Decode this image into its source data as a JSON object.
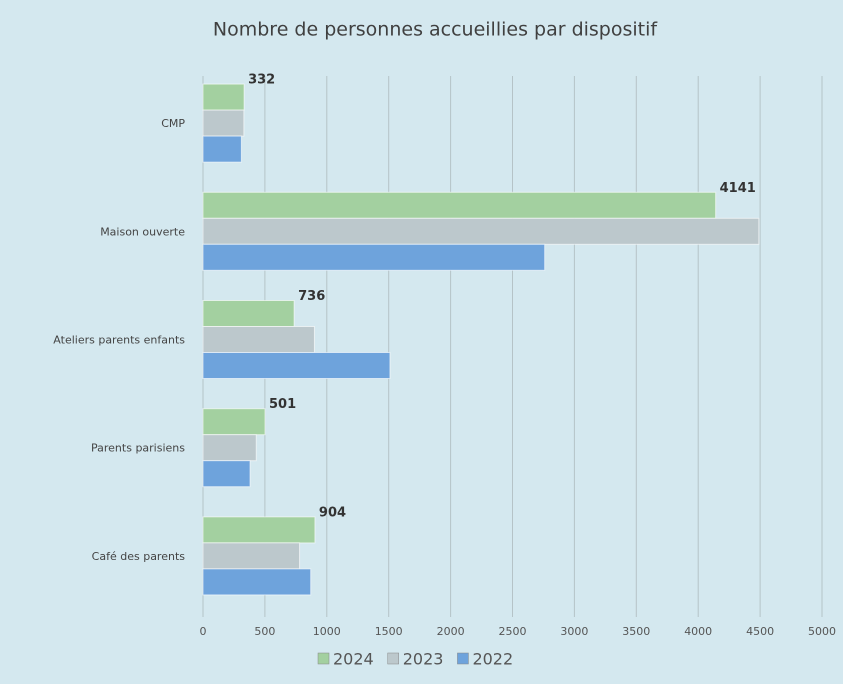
{
  "chart_data": {
    "type": "hbar",
    "title": "Nombre de personnes accueillies par dispositif",
    "categories": [
      "CMP",
      "Maison ouverte",
      "Ateliers parents enfants",
      "Parents parisiens",
      "Café des parents"
    ],
    "series": [
      {
        "name": "2024",
        "color": "#a3d0a0",
        "values": [
          332,
          4141,
          736,
          501,
          904
        ],
        "labels": true
      },
      {
        "name": "2023",
        "color": "#bcc8cc",
        "values": [
          330,
          4490,
          900,
          430,
          780
        ]
      },
      {
        "name": "2022",
        "color": "#6ea3dc",
        "values": [
          310,
          2760,
          1510,
          380,
          870
        ]
      }
    ],
    "xlim": [
      0,
      5000
    ],
    "xticks": [
      0,
      500,
      1000,
      1500,
      2000,
      2500,
      3000,
      3500,
      4000,
      4500,
      5000
    ],
    "grid": true,
    "legend": "bottom"
  }
}
